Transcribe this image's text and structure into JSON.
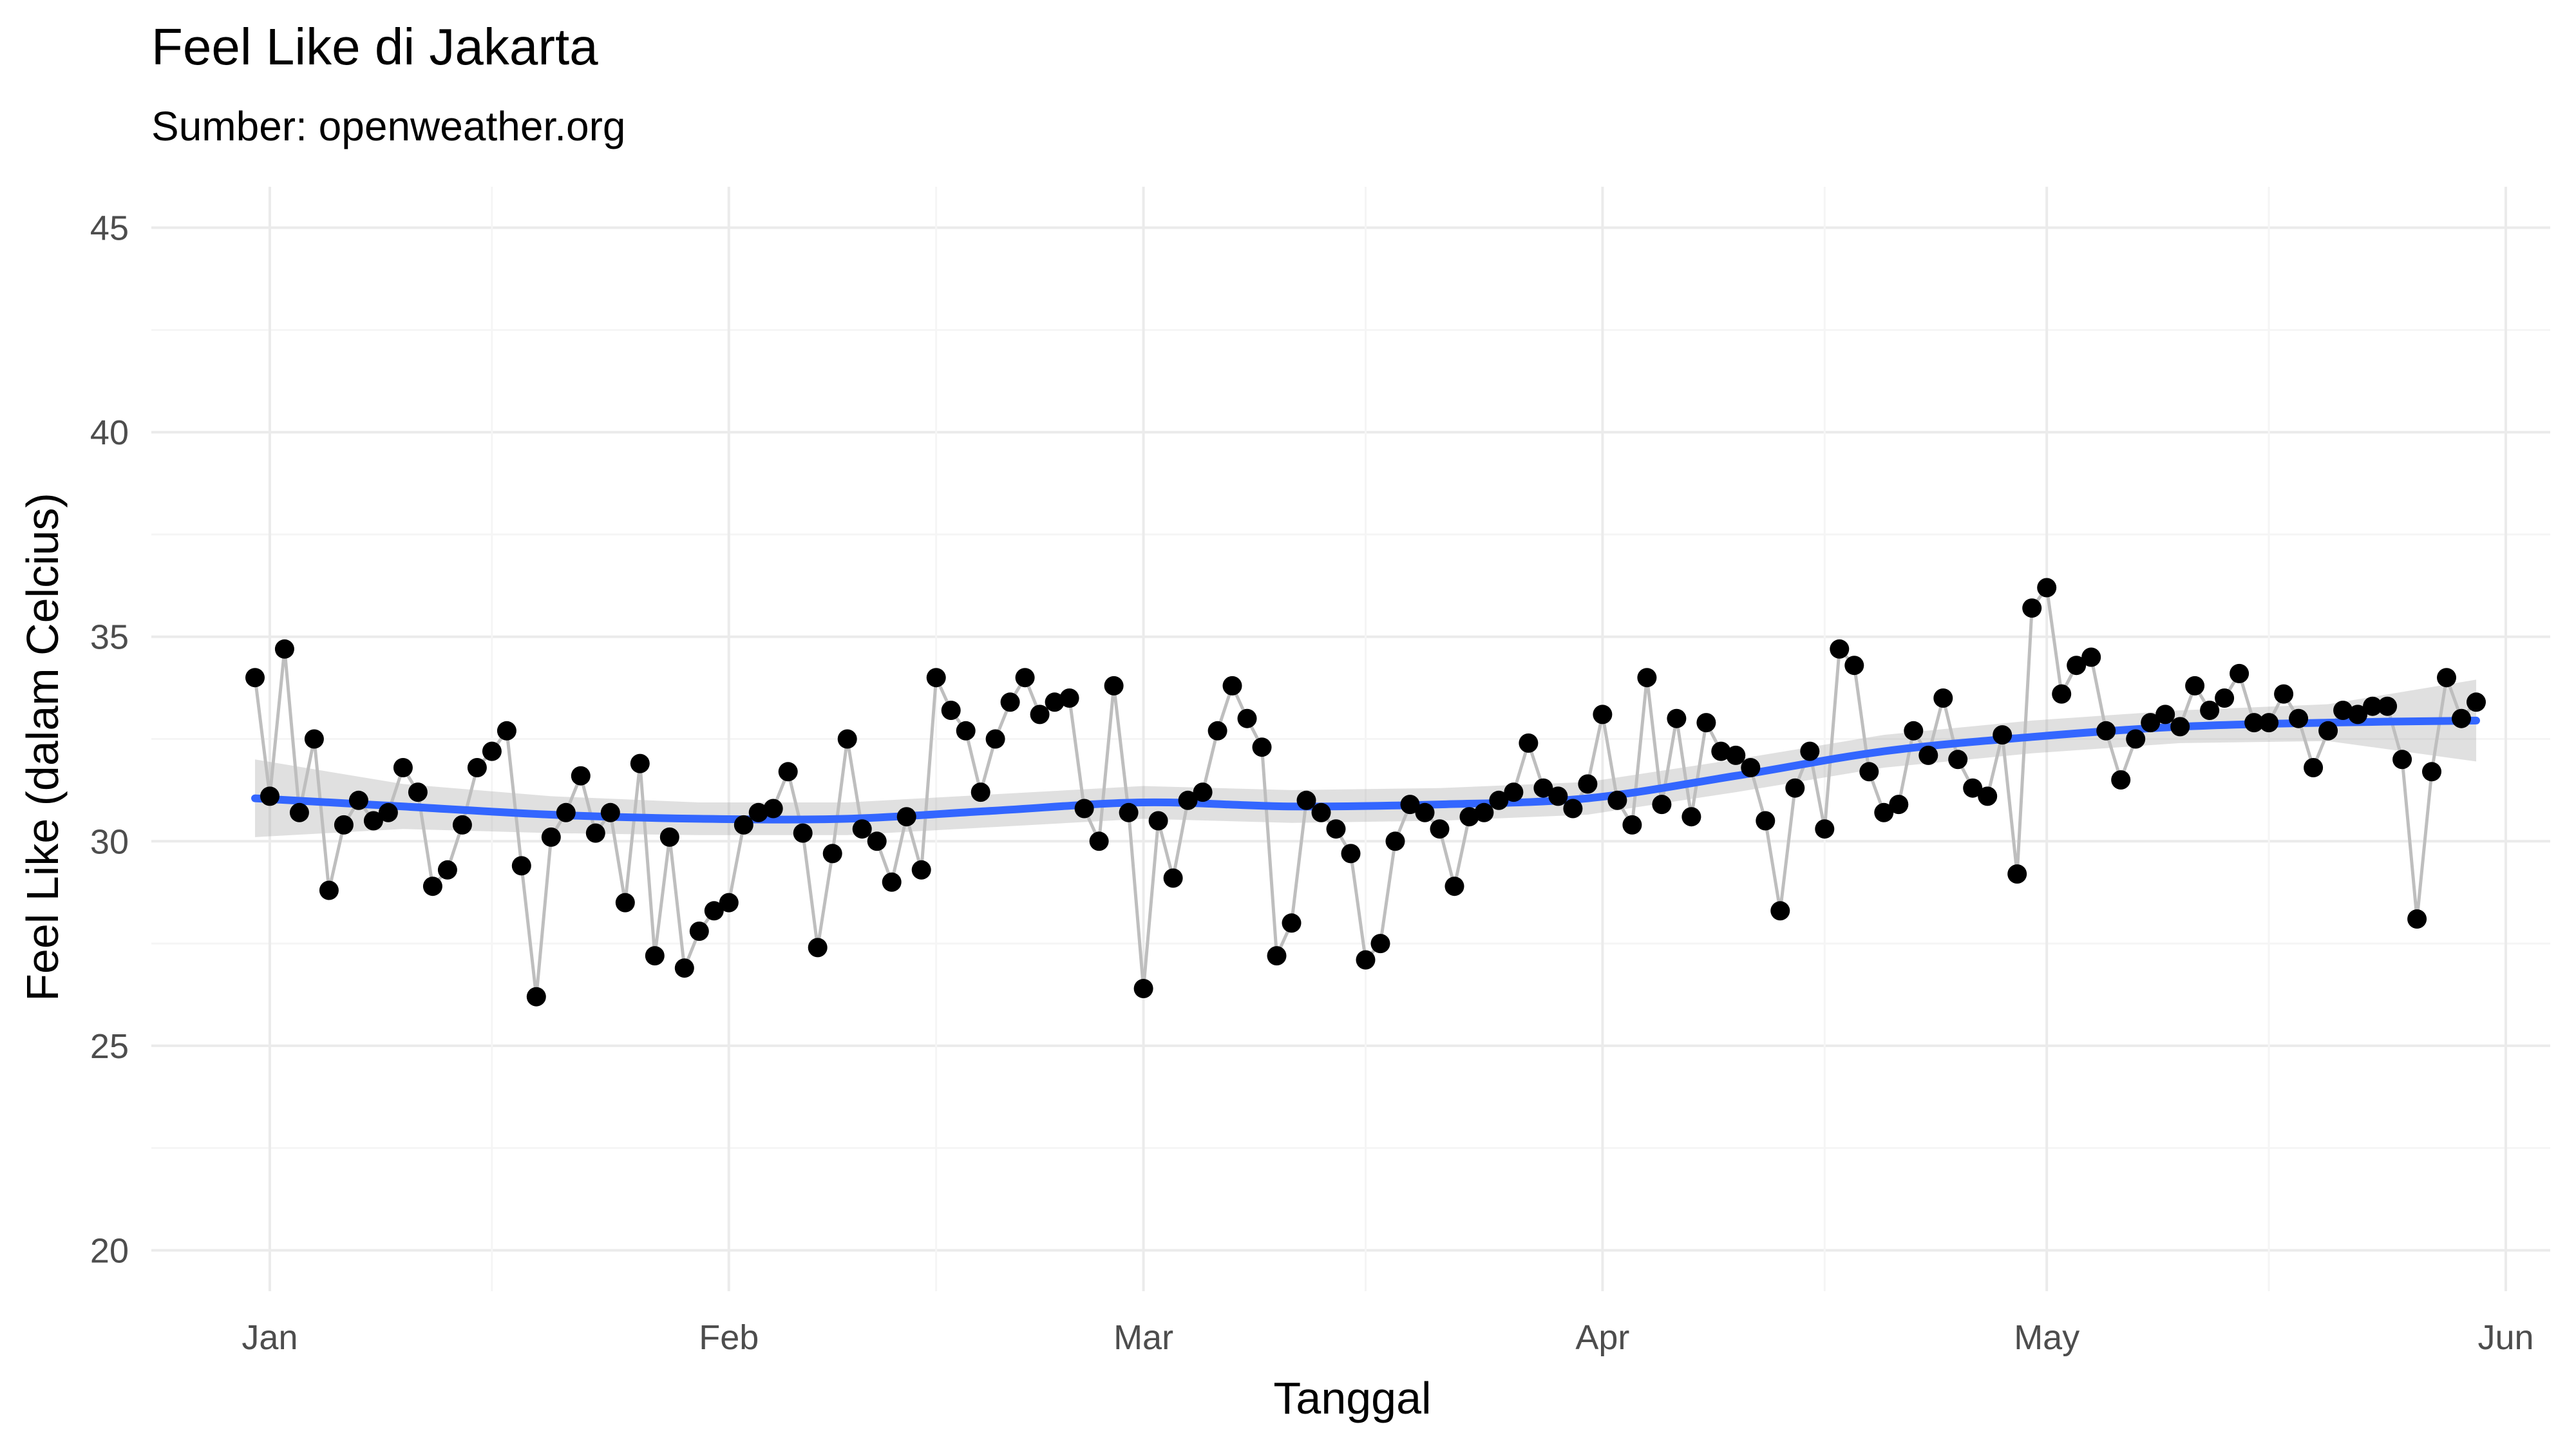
{
  "chart_data": {
    "type": "scatter",
    "title": "Feel Like di Jakarta",
    "subtitle": "Sumber: openweather.org",
    "xlabel": "Tanggal",
    "ylabel": "Feel Like (dalam Celcius)",
    "ylim": [
      19,
      46
    ],
    "yticks": [
      20,
      25,
      30,
      35,
      40,
      45
    ],
    "x_tick_labels": [
      "Jan",
      "Feb",
      "Mar",
      "Apr",
      "May",
      "Jun"
    ],
    "x_ticks": [
      "2021-01-01",
      "2021-02-01",
      "2021-03-01",
      "2021-04-01",
      "2021-05-01",
      "2021-06-01"
    ],
    "xlim": [
      "2020-12-24",
      "2021-06-04"
    ],
    "grid": true,
    "colors": {
      "points": "#000000",
      "line": "#bebebe",
      "smooth": "#3366ff",
      "band": "#999999",
      "grid_major": "#ebebeb",
      "grid_minor": "#f5f5f5"
    },
    "series": [
      {
        "type": "points_and_line",
        "x": [
          "2020-12-31",
          "2021-01-01",
          "2021-01-02",
          "2021-01-03",
          "2021-01-04",
          "2021-01-05",
          "2021-01-06",
          "2021-01-07",
          "2021-01-08",
          "2021-01-09",
          "2021-01-10",
          "2021-01-11",
          "2021-01-12",
          "2021-01-13",
          "2021-01-14",
          "2021-01-15",
          "2021-01-16",
          "2021-01-17",
          "2021-01-18",
          "2021-01-19",
          "2021-01-20",
          "2021-01-21",
          "2021-01-22",
          "2021-01-23",
          "2021-01-24",
          "2021-01-25",
          "2021-01-26",
          "2021-01-27",
          "2021-01-28",
          "2021-01-29",
          "2021-01-30",
          "2021-01-31",
          "2021-02-01",
          "2021-02-02",
          "2021-02-03",
          "2021-02-04",
          "2021-02-05",
          "2021-02-06",
          "2021-02-07",
          "2021-02-08",
          "2021-02-09",
          "2021-02-10",
          "2021-02-11",
          "2021-02-12",
          "2021-02-13",
          "2021-02-14",
          "2021-02-15",
          "2021-02-16",
          "2021-02-17",
          "2021-02-18",
          "2021-02-19",
          "2021-02-20",
          "2021-02-21",
          "2021-02-22",
          "2021-02-23",
          "2021-02-24",
          "2021-02-25",
          "2021-02-26",
          "2021-02-27",
          "2021-02-28",
          "2021-03-01",
          "2021-03-02",
          "2021-03-03",
          "2021-03-04",
          "2021-03-05",
          "2021-03-06",
          "2021-03-07",
          "2021-03-08",
          "2021-03-09",
          "2021-03-10",
          "2021-03-11",
          "2021-03-12",
          "2021-03-13",
          "2021-03-14",
          "2021-03-15",
          "2021-03-16",
          "2021-03-17",
          "2021-03-18",
          "2021-03-19",
          "2021-03-20",
          "2021-03-21",
          "2021-03-22",
          "2021-03-23",
          "2021-03-24",
          "2021-03-25",
          "2021-03-26",
          "2021-03-27",
          "2021-03-28",
          "2021-03-29",
          "2021-03-30",
          "2021-03-31",
          "2021-04-01",
          "2021-04-02",
          "2021-04-03",
          "2021-04-04",
          "2021-04-05",
          "2021-04-06",
          "2021-04-07",
          "2021-04-08",
          "2021-04-09",
          "2021-04-10",
          "2021-04-11",
          "2021-04-12",
          "2021-04-13",
          "2021-04-14",
          "2021-04-15",
          "2021-04-16",
          "2021-04-17",
          "2021-04-18",
          "2021-04-19",
          "2021-04-20",
          "2021-04-21",
          "2021-04-22",
          "2021-04-23",
          "2021-04-24",
          "2021-04-25",
          "2021-04-26",
          "2021-04-27",
          "2021-04-28",
          "2021-04-29",
          "2021-04-30",
          "2021-05-01",
          "2021-05-02",
          "2021-05-03",
          "2021-05-04",
          "2021-05-05",
          "2021-05-06",
          "2021-05-07",
          "2021-05-08",
          "2021-05-09",
          "2021-05-10",
          "2021-05-11",
          "2021-05-12",
          "2021-05-13",
          "2021-05-14",
          "2021-05-15",
          "2021-05-16",
          "2021-05-17",
          "2021-05-18",
          "2021-05-19",
          "2021-05-20",
          "2021-05-21",
          "2021-05-22",
          "2021-05-23",
          "2021-05-24",
          "2021-05-25",
          "2021-05-26",
          "2021-05-27",
          "2021-05-28",
          "2021-05-29",
          "2021-05-30"
        ],
        "y": [
          34.0,
          31.1,
          34.7,
          30.7,
          32.5,
          28.8,
          30.4,
          31.0,
          30.5,
          30.7,
          31.8,
          31.2,
          28.9,
          29.3,
          30.4,
          31.8,
          32.2,
          32.7,
          29.4,
          26.2,
          30.1,
          30.7,
          31.6,
          30.2,
          30.7,
          28.5,
          31.9,
          27.2,
          30.1,
          26.9,
          27.8,
          28.3,
          28.5,
          30.4,
          30.7,
          30.8,
          31.7,
          30.2,
          27.4,
          29.7,
          32.5,
          30.3,
          30.0,
          29.0,
          30.6,
          29.3,
          34.0,
          33.2,
          32.7,
          31.2,
          32.5,
          33.4,
          34.0,
          33.1,
          33.4,
          33.5,
          30.8,
          30.0,
          33.8,
          30.7,
          26.4,
          30.5,
          29.1,
          31.0,
          31.2,
          32.7,
          33.8,
          33.0,
          32.3,
          27.2,
          28.0,
          31.0,
          30.7,
          30.3,
          29.7,
          27.1,
          27.5,
          30.0,
          30.9,
          30.7,
          30.3,
          28.9,
          30.6,
          30.7,
          31.0,
          31.2,
          32.4,
          31.3,
          31.1,
          30.8,
          31.4,
          33.1,
          31.0,
          30.4,
          34.0,
          30.9,
          33.0,
          30.6,
          32.9,
          32.2,
          32.1,
          31.8,
          30.5,
          28.3,
          31.3,
          32.2,
          30.3,
          34.7,
          34.3,
          31.7,
          30.7,
          30.9,
          32.7,
          32.1,
          33.5,
          32.0,
          31.3,
          31.1,
          32.6,
          29.2,
          35.7,
          36.2,
          33.6,
          34.3,
          34.5,
          32.7,
          31.5,
          32.5,
          32.9,
          33.1,
          32.8,
          33.8,
          33.2,
          33.5,
          34.1,
          32.9,
          32.9,
          33.6,
          33.0,
          31.8,
          32.7,
          33.2,
          33.1,
          33.3,
          33.3,
          32.0,
          28.1,
          31.7,
          34.0,
          33.0,
          33.4
        ]
      },
      {
        "type": "smooth",
        "x": [
          "2020-12-31",
          "2021-01-10",
          "2021-01-20",
          "2021-01-30",
          "2021-02-09",
          "2021-02-19",
          "2021-03-01",
          "2021-03-11",
          "2021-03-21",
          "2021-03-31",
          "2021-04-10",
          "2021-04-20",
          "2021-04-30",
          "2021-05-10",
          "2021-05-20",
          "2021-05-30"
        ],
        "y": [
          31.05,
          30.85,
          30.65,
          30.55,
          30.55,
          30.75,
          30.95,
          30.85,
          30.9,
          31.05,
          31.6,
          32.2,
          32.55,
          32.8,
          32.9,
          32.95
        ],
        "ci_lower": [
          30.1,
          30.3,
          30.2,
          30.15,
          30.15,
          30.35,
          30.55,
          30.45,
          30.5,
          30.65,
          31.2,
          31.8,
          32.15,
          32.4,
          32.45,
          31.95
        ],
        "ci_upper": [
          32.0,
          31.4,
          31.1,
          30.95,
          30.95,
          31.15,
          31.35,
          31.25,
          31.3,
          31.45,
          32.0,
          32.6,
          32.95,
          33.2,
          33.35,
          33.95
        ]
      }
    ]
  }
}
